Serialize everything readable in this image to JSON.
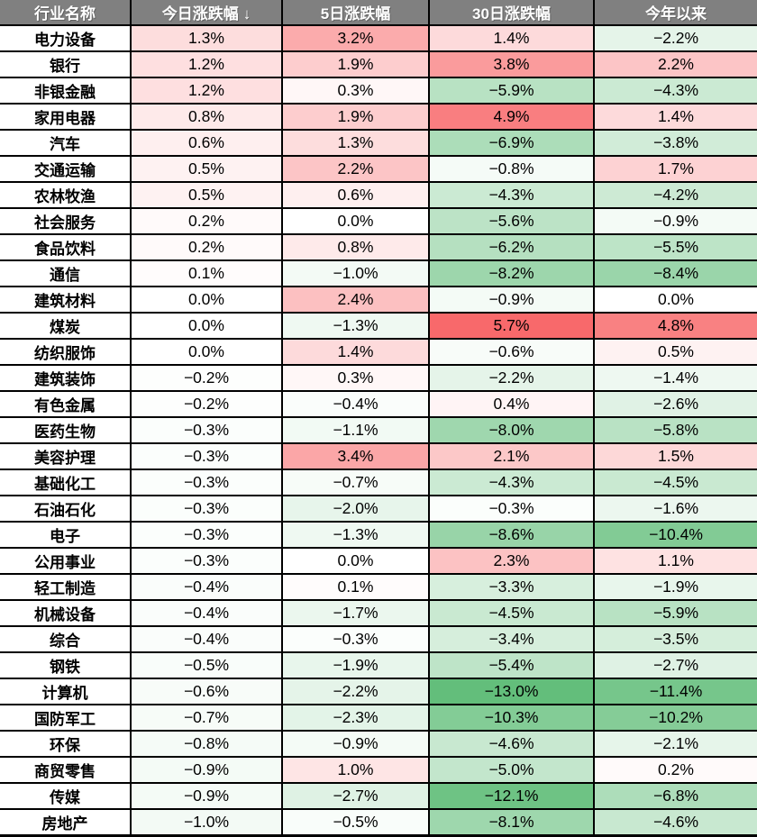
{
  "chart_data": {
    "type": "heatmap-table",
    "columns": [
      {
        "label": "行业名称"
      },
      {
        "label": "今日涨跌幅",
        "sort_indicator": "↓"
      },
      {
        "label": "5日涨跌幅"
      },
      {
        "label": "30日涨跌幅"
      },
      {
        "label": "今年以来"
      }
    ],
    "rows": [
      {
        "name": "电力设备",
        "values": [
          1.3,
          3.2,
          1.4,
          -2.2
        ]
      },
      {
        "name": "银行",
        "values": [
          1.2,
          1.9,
          3.8,
          2.2
        ]
      },
      {
        "name": "非银金融",
        "values": [
          1.2,
          0.3,
          -5.9,
          -4.3
        ]
      },
      {
        "name": "家用电器",
        "values": [
          0.8,
          1.9,
          4.9,
          1.4
        ]
      },
      {
        "name": "汽车",
        "values": [
          0.6,
          1.3,
          -6.9,
          -3.8
        ]
      },
      {
        "name": "交通运输",
        "values": [
          0.5,
          2.2,
          -0.8,
          1.7
        ]
      },
      {
        "name": "农林牧渔",
        "values": [
          0.5,
          0.6,
          -4.3,
          -4.2
        ]
      },
      {
        "name": "社会服务",
        "values": [
          0.2,
          0.0,
          -5.6,
          -0.9
        ]
      },
      {
        "name": "食品饮料",
        "values": [
          0.2,
          0.8,
          -6.2,
          -5.5
        ]
      },
      {
        "name": "通信",
        "values": [
          0.1,
          -1.0,
          -8.2,
          -8.4
        ]
      },
      {
        "name": "建筑材料",
        "values": [
          0.0,
          2.4,
          -0.9,
          0.0
        ]
      },
      {
        "name": "煤炭",
        "values": [
          0.0,
          -1.3,
          5.7,
          4.8
        ]
      },
      {
        "name": "纺织服饰",
        "values": [
          0.0,
          1.4,
          -0.6,
          0.5
        ]
      },
      {
        "name": "建筑装饰",
        "values": [
          -0.2,
          0.3,
          -2.2,
          -1.4
        ]
      },
      {
        "name": "有色金属",
        "values": [
          -0.2,
          -0.4,
          0.4,
          -2.6
        ]
      },
      {
        "name": "医药生物",
        "values": [
          -0.3,
          -1.1,
          -8.0,
          -5.8
        ]
      },
      {
        "name": "美容护理",
        "values": [
          -0.3,
          3.4,
          2.1,
          1.5
        ]
      },
      {
        "name": "基础化工",
        "values": [
          -0.3,
          -0.7,
          -4.3,
          -4.5
        ]
      },
      {
        "name": "石油石化",
        "values": [
          -0.3,
          -2.0,
          -0.3,
          -1.6
        ]
      },
      {
        "name": "电子",
        "values": [
          -0.3,
          -1.3,
          -8.6,
          -10.4
        ]
      },
      {
        "name": "公用事业",
        "values": [
          -0.3,
          0.0,
          2.3,
          1.1
        ]
      },
      {
        "name": "轻工制造",
        "values": [
          -0.4,
          0.1,
          -3.3,
          -1.9
        ]
      },
      {
        "name": "机械设备",
        "values": [
          -0.4,
          -1.7,
          -4.5,
          -5.9
        ]
      },
      {
        "name": "综合",
        "values": [
          -0.4,
          -0.3,
          -3.4,
          -3.5
        ]
      },
      {
        "name": "钢铁",
        "values": [
          -0.5,
          -1.9,
          -5.4,
          -2.7
        ]
      },
      {
        "name": "计算机",
        "values": [
          -0.6,
          -2.2,
          -13.0,
          -11.4
        ]
      },
      {
        "name": "国防军工",
        "values": [
          -0.7,
          -2.3,
          -10.3,
          -10.2
        ]
      },
      {
        "name": "环保",
        "values": [
          -0.8,
          -0.9,
          -4.6,
          -2.1
        ]
      },
      {
        "name": "商贸零售",
        "values": [
          -0.9,
          1.0,
          -5.0,
          0.2
        ]
      },
      {
        "name": "传媒",
        "values": [
          -0.9,
          -2.7,
          -12.1,
          -6.8
        ]
      },
      {
        "name": "房地产",
        "values": [
          -1.0,
          -0.5,
          -8.1,
          -4.6
        ]
      }
    ],
    "value_format": {
      "suffix": "%",
      "decimals": 1,
      "minus_sign": "−"
    },
    "color_scale": {
      "positive_max": 5.7,
      "negative_min": -13.0,
      "red": "#F8696B",
      "white": "#FFFFFF",
      "green": "#63BE7B"
    },
    "style": {
      "header_bg": "#808080",
      "header_text": "#FFFFFF",
      "border_color": "#000000"
    }
  }
}
